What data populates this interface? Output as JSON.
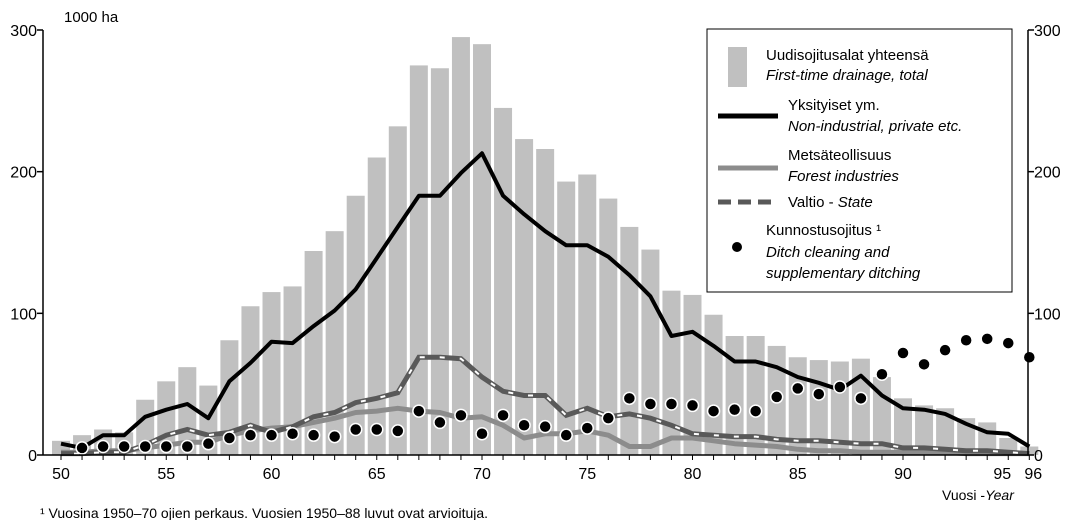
{
  "chart_data": {
    "type": "bar",
    "y_unit": "1000 ha",
    "x_axis_label": {
      "fi": "Vuosi",
      "sep": " -",
      "en": "Year"
    },
    "ylim": [
      0,
      300
    ],
    "y_ticks": [
      0,
      100,
      200,
      300
    ],
    "y_tick_labels_right": [
      "0",
      "100",
      "200",
      "300"
    ],
    "x_tick_years": [
      1950,
      1955,
      1960,
      1965,
      1970,
      1975,
      1980,
      1985,
      1990,
      1995,
      1996
    ],
    "x_tick_labels": [
      "50",
      "55",
      "60",
      "65",
      "70",
      "75",
      "80",
      "85",
      "90",
      "95",
      "96"
    ],
    "grid": false,
    "legend_position": "top-right",
    "colors": {
      "bars": "#c0c0c0",
      "private": "#000000",
      "industry": "#8c8c8c",
      "state": "#595959",
      "dots": "#000000"
    },
    "legend": {
      "total": {
        "fi": "Uudisojitusalat yhteensä",
        "en": "First-time drainage, total"
      },
      "private": {
        "fi": "Yksityiset ym.",
        "en": "Non-industrial, private etc."
      },
      "industry": {
        "fi": "Metsäteollisuus",
        "en": "Forest industries"
      },
      "state": {
        "fi": "Valtio - ",
        "en": "State"
      },
      "ditch": {
        "fi": "Kunnostusojitus ¹",
        "en1": "Ditch cleaning and",
        "en2": "supplementary ditching"
      }
    },
    "footnote": "¹ Vuosina 1950–70 ojien perkaus. Vuosien 1950–88 luvut ovat arvioituja.",
    "years": [
      1950,
      1951,
      1952,
      1953,
      1954,
      1955,
      1956,
      1957,
      1958,
      1959,
      1960,
      1961,
      1962,
      1963,
      1964,
      1965,
      1966,
      1967,
      1968,
      1969,
      1970,
      1971,
      1972,
      1973,
      1974,
      1975,
      1976,
      1977,
      1978,
      1979,
      1980,
      1981,
      1982,
      1983,
      1984,
      1985,
      1986,
      1987,
      1988,
      1989,
      1990,
      1991,
      1992,
      1993,
      1994,
      1995,
      1996
    ],
    "series": [
      {
        "key": "total",
        "values": [
          10,
          14,
          18,
          16,
          39,
          52,
          62,
          49,
          81,
          105,
          115,
          119,
          144,
          158,
          183,
          210,
          232,
          275,
          273,
          295,
          290,
          245,
          223,
          216,
          193,
          198,
          181,
          161,
          145,
          116,
          113,
          99,
          84,
          84,
          77,
          69,
          67,
          66,
          68,
          55,
          40,
          35,
          33,
          26,
          23,
          12,
          6
        ]
      },
      {
        "key": "private",
        "values": [
          8,
          5,
          14,
          14,
          27,
          32,
          36,
          26,
          52,
          65,
          80,
          79,
          91,
          102,
          117,
          139,
          161,
          183,
          183,
          199,
          213,
          183,
          170,
          158,
          148,
          148,
          140,
          127,
          112,
          84,
          87,
          77,
          66,
          66,
          62,
          55,
          51,
          46,
          56,
          42,
          33,
          32,
          29,
          22,
          16,
          15,
          6
        ]
      },
      {
        "key": "industry",
        "values": [
          2,
          2,
          3,
          3,
          5,
          7,
          9,
          9,
          14,
          17,
          19,
          20,
          23,
          26,
          30,
          31,
          33,
          31,
          30,
          26,
          27,
          21,
          12,
          15,
          15,
          17,
          14,
          6,
          6,
          12,
          12,
          10,
          8,
          7,
          6,
          4,
          3,
          3,
          2,
          2,
          2,
          2,
          2,
          1,
          1,
          1,
          1
        ]
      },
      {
        "key": "state",
        "values": [
          1,
          1,
          2,
          2,
          7,
          14,
          18,
          14,
          16,
          21,
          16,
          20,
          27,
          30,
          37,
          40,
          44,
          69,
          69,
          68,
          55,
          45,
          42,
          42,
          28,
          33,
          27,
          29,
          26,
          21,
          15,
          14,
          13,
          13,
          11,
          10,
          10,
          9,
          8,
          8,
          5,
          5,
          4,
          3,
          3,
          2,
          1
        ]
      },
      {
        "key": "ditch",
        "values": [
          null,
          5,
          6,
          6,
          6,
          6,
          6,
          8,
          12,
          14,
          14,
          15,
          14,
          13,
          18,
          18,
          17,
          31,
          23,
          28,
          15,
          28,
          21,
          20,
          14,
          19,
          26,
          40,
          36,
          36,
          35,
          31,
          32,
          31,
          41,
          47,
          43,
          48,
          40,
          57,
          72,
          64,
          74,
          81,
          82,
          79,
          69
        ]
      }
    ]
  }
}
